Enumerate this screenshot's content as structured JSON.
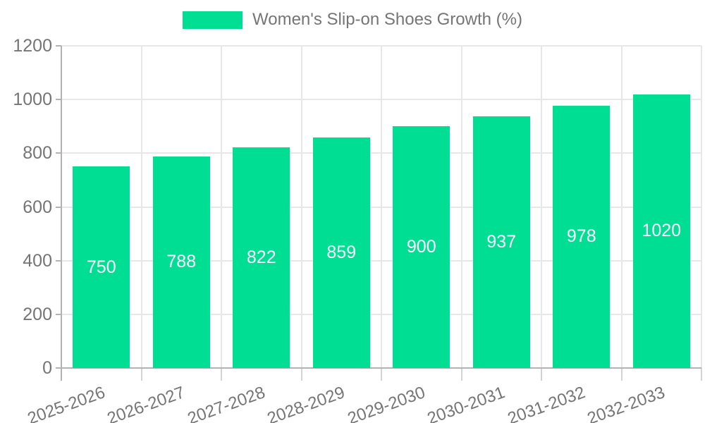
{
  "legend": {
    "label": "Women's Slip-on Shoes Growth (%)"
  },
  "colors": {
    "bar": "#00DE94",
    "grid": "#e7e7e7",
    "axis": "#b3b3b3",
    "x_tick": "#d4d4d4",
    "tick_text": "#757575",
    "value_text": "#ffffff"
  },
  "chart_data": {
    "type": "bar",
    "title": "",
    "series_name": "Women's Slip-on Shoes Growth (%)",
    "categories": [
      "2025-2026",
      "2026-2027",
      "2027-2028",
      "2028-2029",
      "2029-2030",
      "2030-2031",
      "2031-2032",
      "2032-2033"
    ],
    "values": [
      750,
      788,
      822,
      859,
      900,
      937,
      978,
      1020
    ],
    "xlabel": "",
    "ylabel": "",
    "ylim": [
      0,
      1200
    ],
    "yticks": [
      0,
      200,
      400,
      600,
      800,
      1000,
      1200
    ],
    "grid": true,
    "legend_position": "top",
    "value_labels": "inside-center",
    "x_tick_rotation_deg": -20
  }
}
